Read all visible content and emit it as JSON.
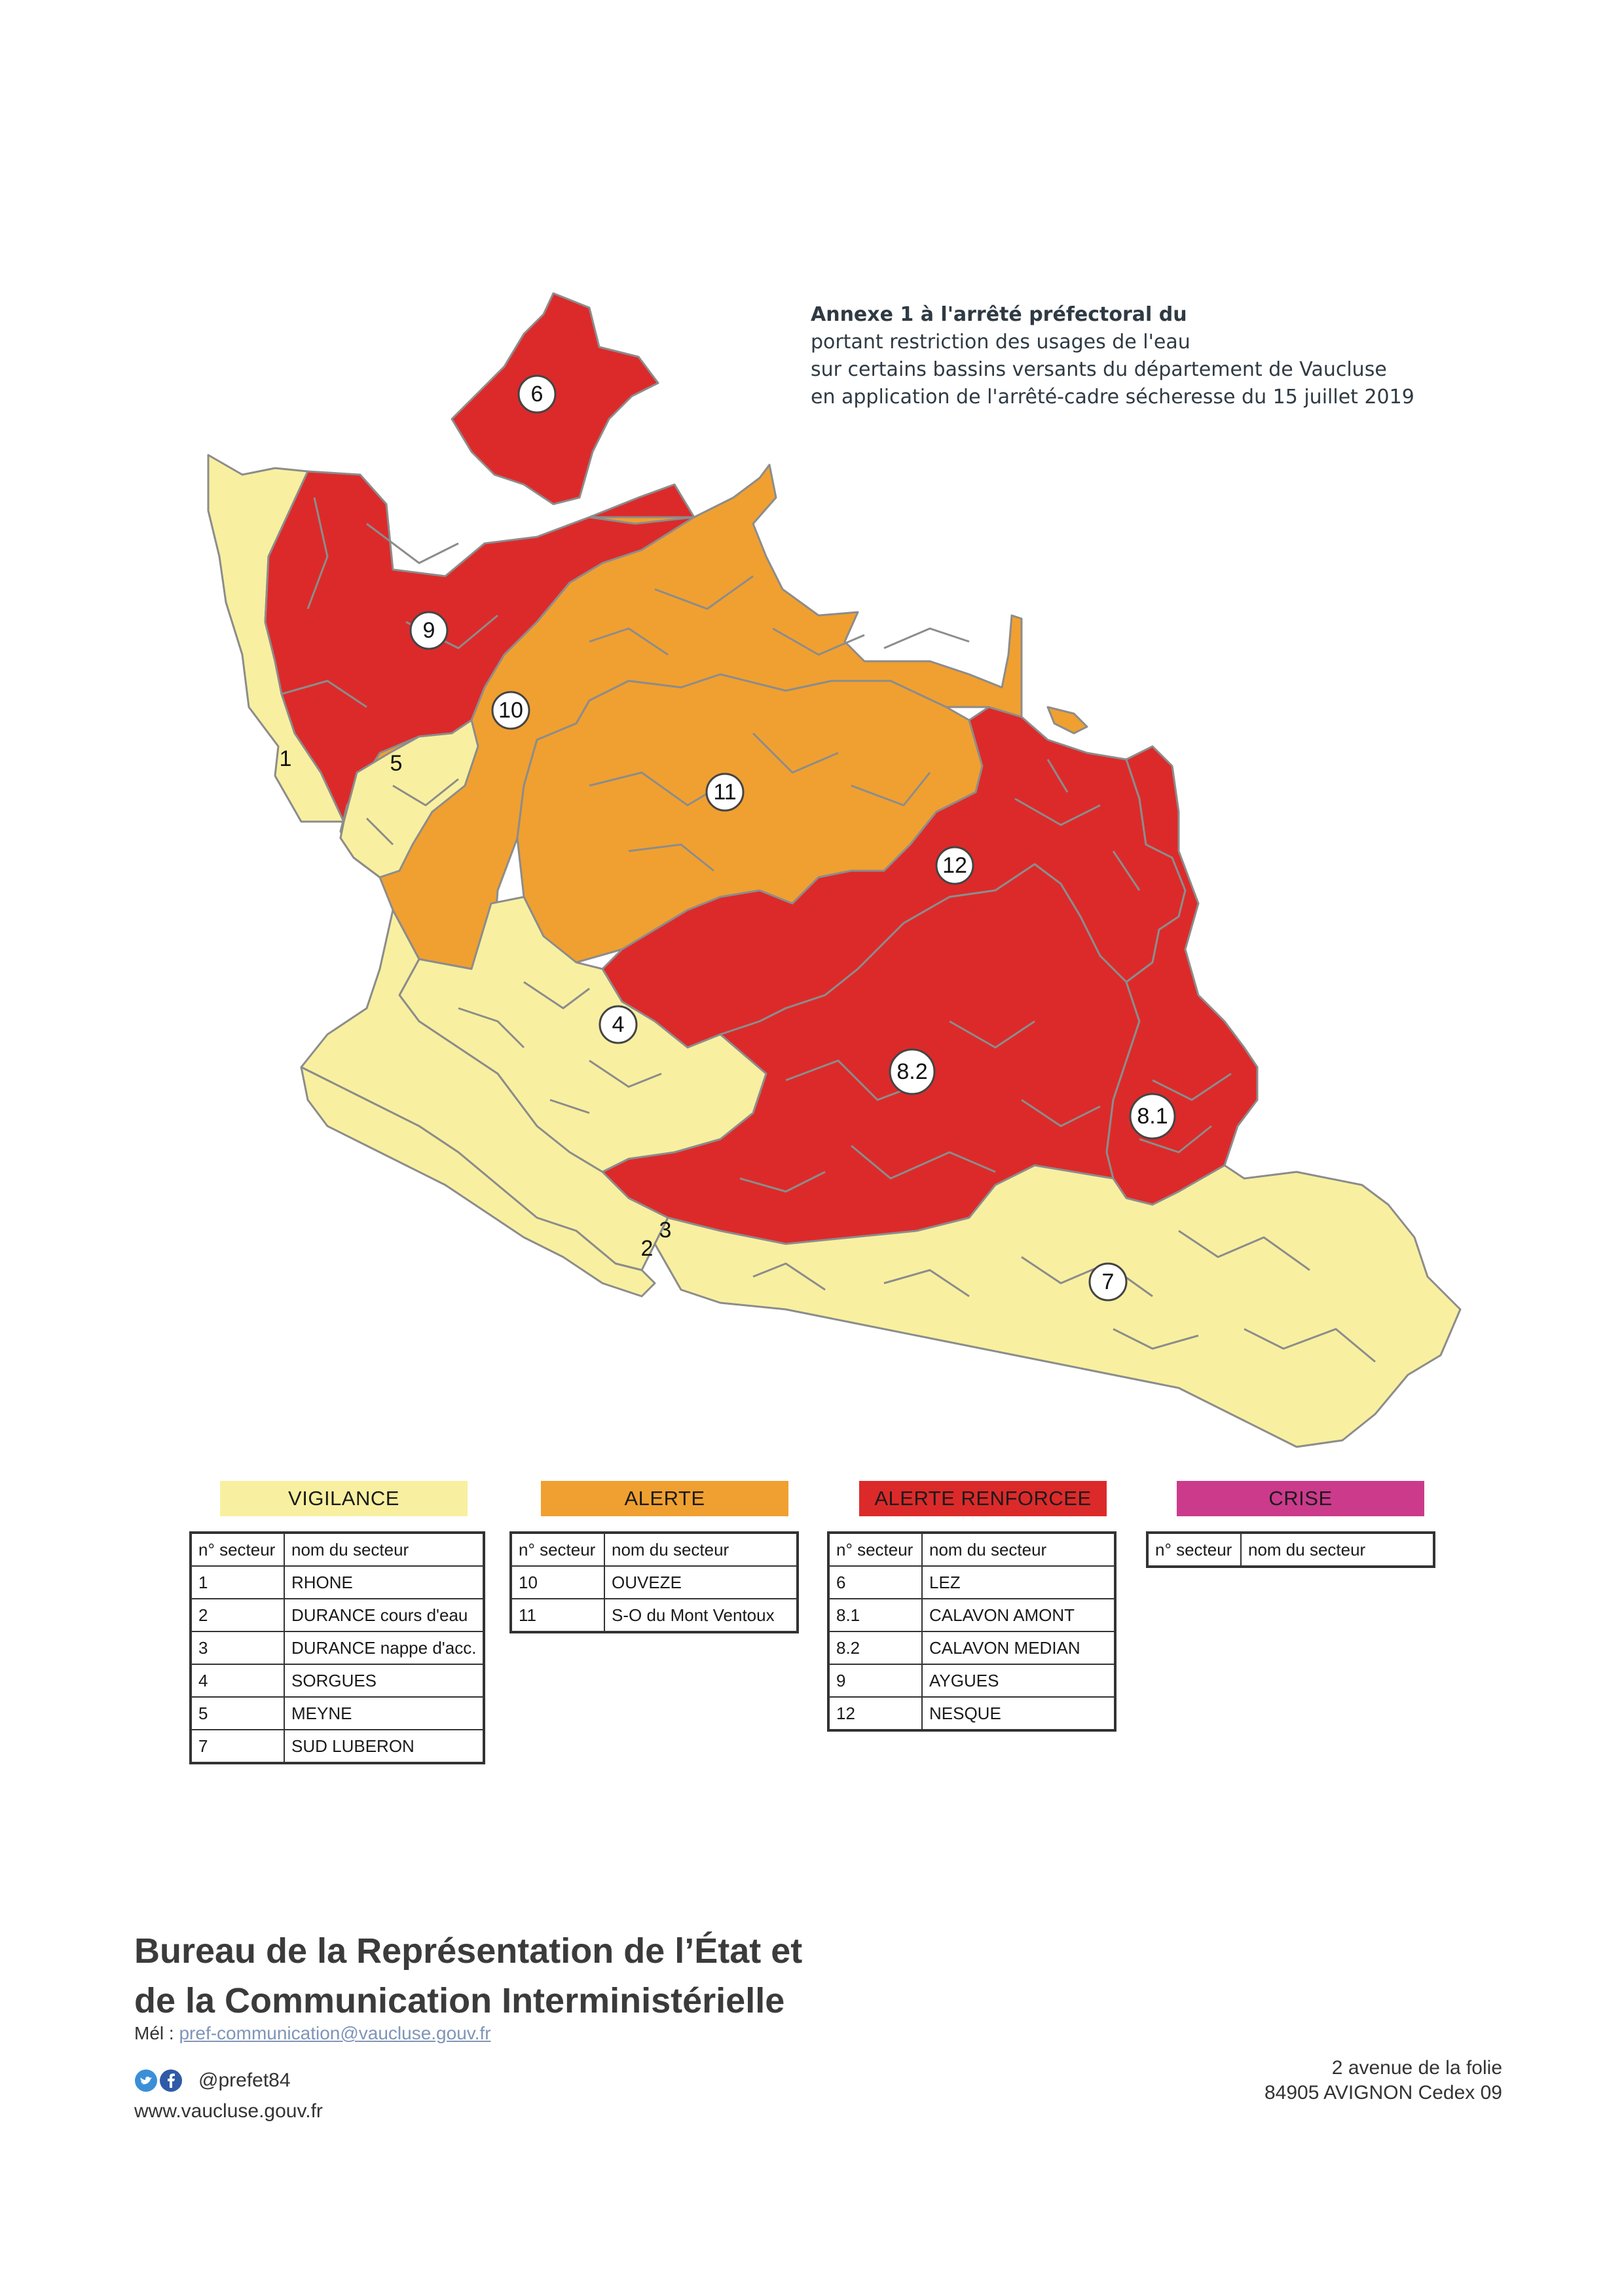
{
  "annex": {
    "line1": "Annexe 1 à l'arrêté préfectoral du",
    "line2": "portant restriction des usages de l'eau",
    "line3": "sur certains bassins versants du département de Vaucluse",
    "line4": "en application de l'arrêté-cadre sécheresse du 15 juillet 2019"
  },
  "colors": {
    "vigilance": "#f8f0a0",
    "alerte": "#f0a030",
    "alerte_renforcee": "#dc2a2a",
    "crise": "#cc3a8c",
    "border": "#8c8c8c"
  },
  "map": {
    "sector_labels": [
      "1",
      "2",
      "3",
      "4",
      "5",
      "6",
      "7",
      "8.1",
      "8.2",
      "9",
      "10",
      "11",
      "12"
    ]
  },
  "legend": {
    "vigilance": "VIGILANCE",
    "alerte": "ALERTE",
    "alerte_renforcee": "ALERTE RENFORCEE",
    "crise": "CRISE"
  },
  "tables": {
    "header_num": "n° secteur",
    "header_name": "nom du secteur",
    "vigilance": [
      {
        "num": "1",
        "name": "RHONE"
      },
      {
        "num": "2",
        "name": "DURANCE cours d'eau"
      },
      {
        "num": "3",
        "name": "DURANCE nappe d'acc."
      },
      {
        "num": "4",
        "name": "SORGUES"
      },
      {
        "num": "5",
        "name": "MEYNE"
      },
      {
        "num": "7",
        "name": "SUD LUBERON"
      }
    ],
    "alerte": [
      {
        "num": "10",
        "name": "OUVEZE"
      },
      {
        "num": "11",
        "name": "S-O du Mont Ventoux"
      }
    ],
    "alerte_renforcee": [
      {
        "num": "6",
        "name": "LEZ"
      },
      {
        "num": "8.1",
        "name": "CALAVON AMONT"
      },
      {
        "num": "8.2",
        "name": "CALAVON MEDIAN"
      },
      {
        "num": "9",
        "name": "AYGUES"
      },
      {
        "num": "12",
        "name": "NESQUE"
      }
    ],
    "crise": []
  },
  "footer": {
    "title_line1": "Bureau de la Représentation de l’État et",
    "title_line2": "de la Communication Interministérielle",
    "mail_label": "Mél :",
    "mail": "pref-communication@vaucluse.gouv.fr",
    "handle": "@prefet84",
    "website": "www.vaucluse.gouv.fr",
    "address_line1": "2 avenue de la folie",
    "address_line2": "84905 AVIGNON Cedex 09"
  }
}
